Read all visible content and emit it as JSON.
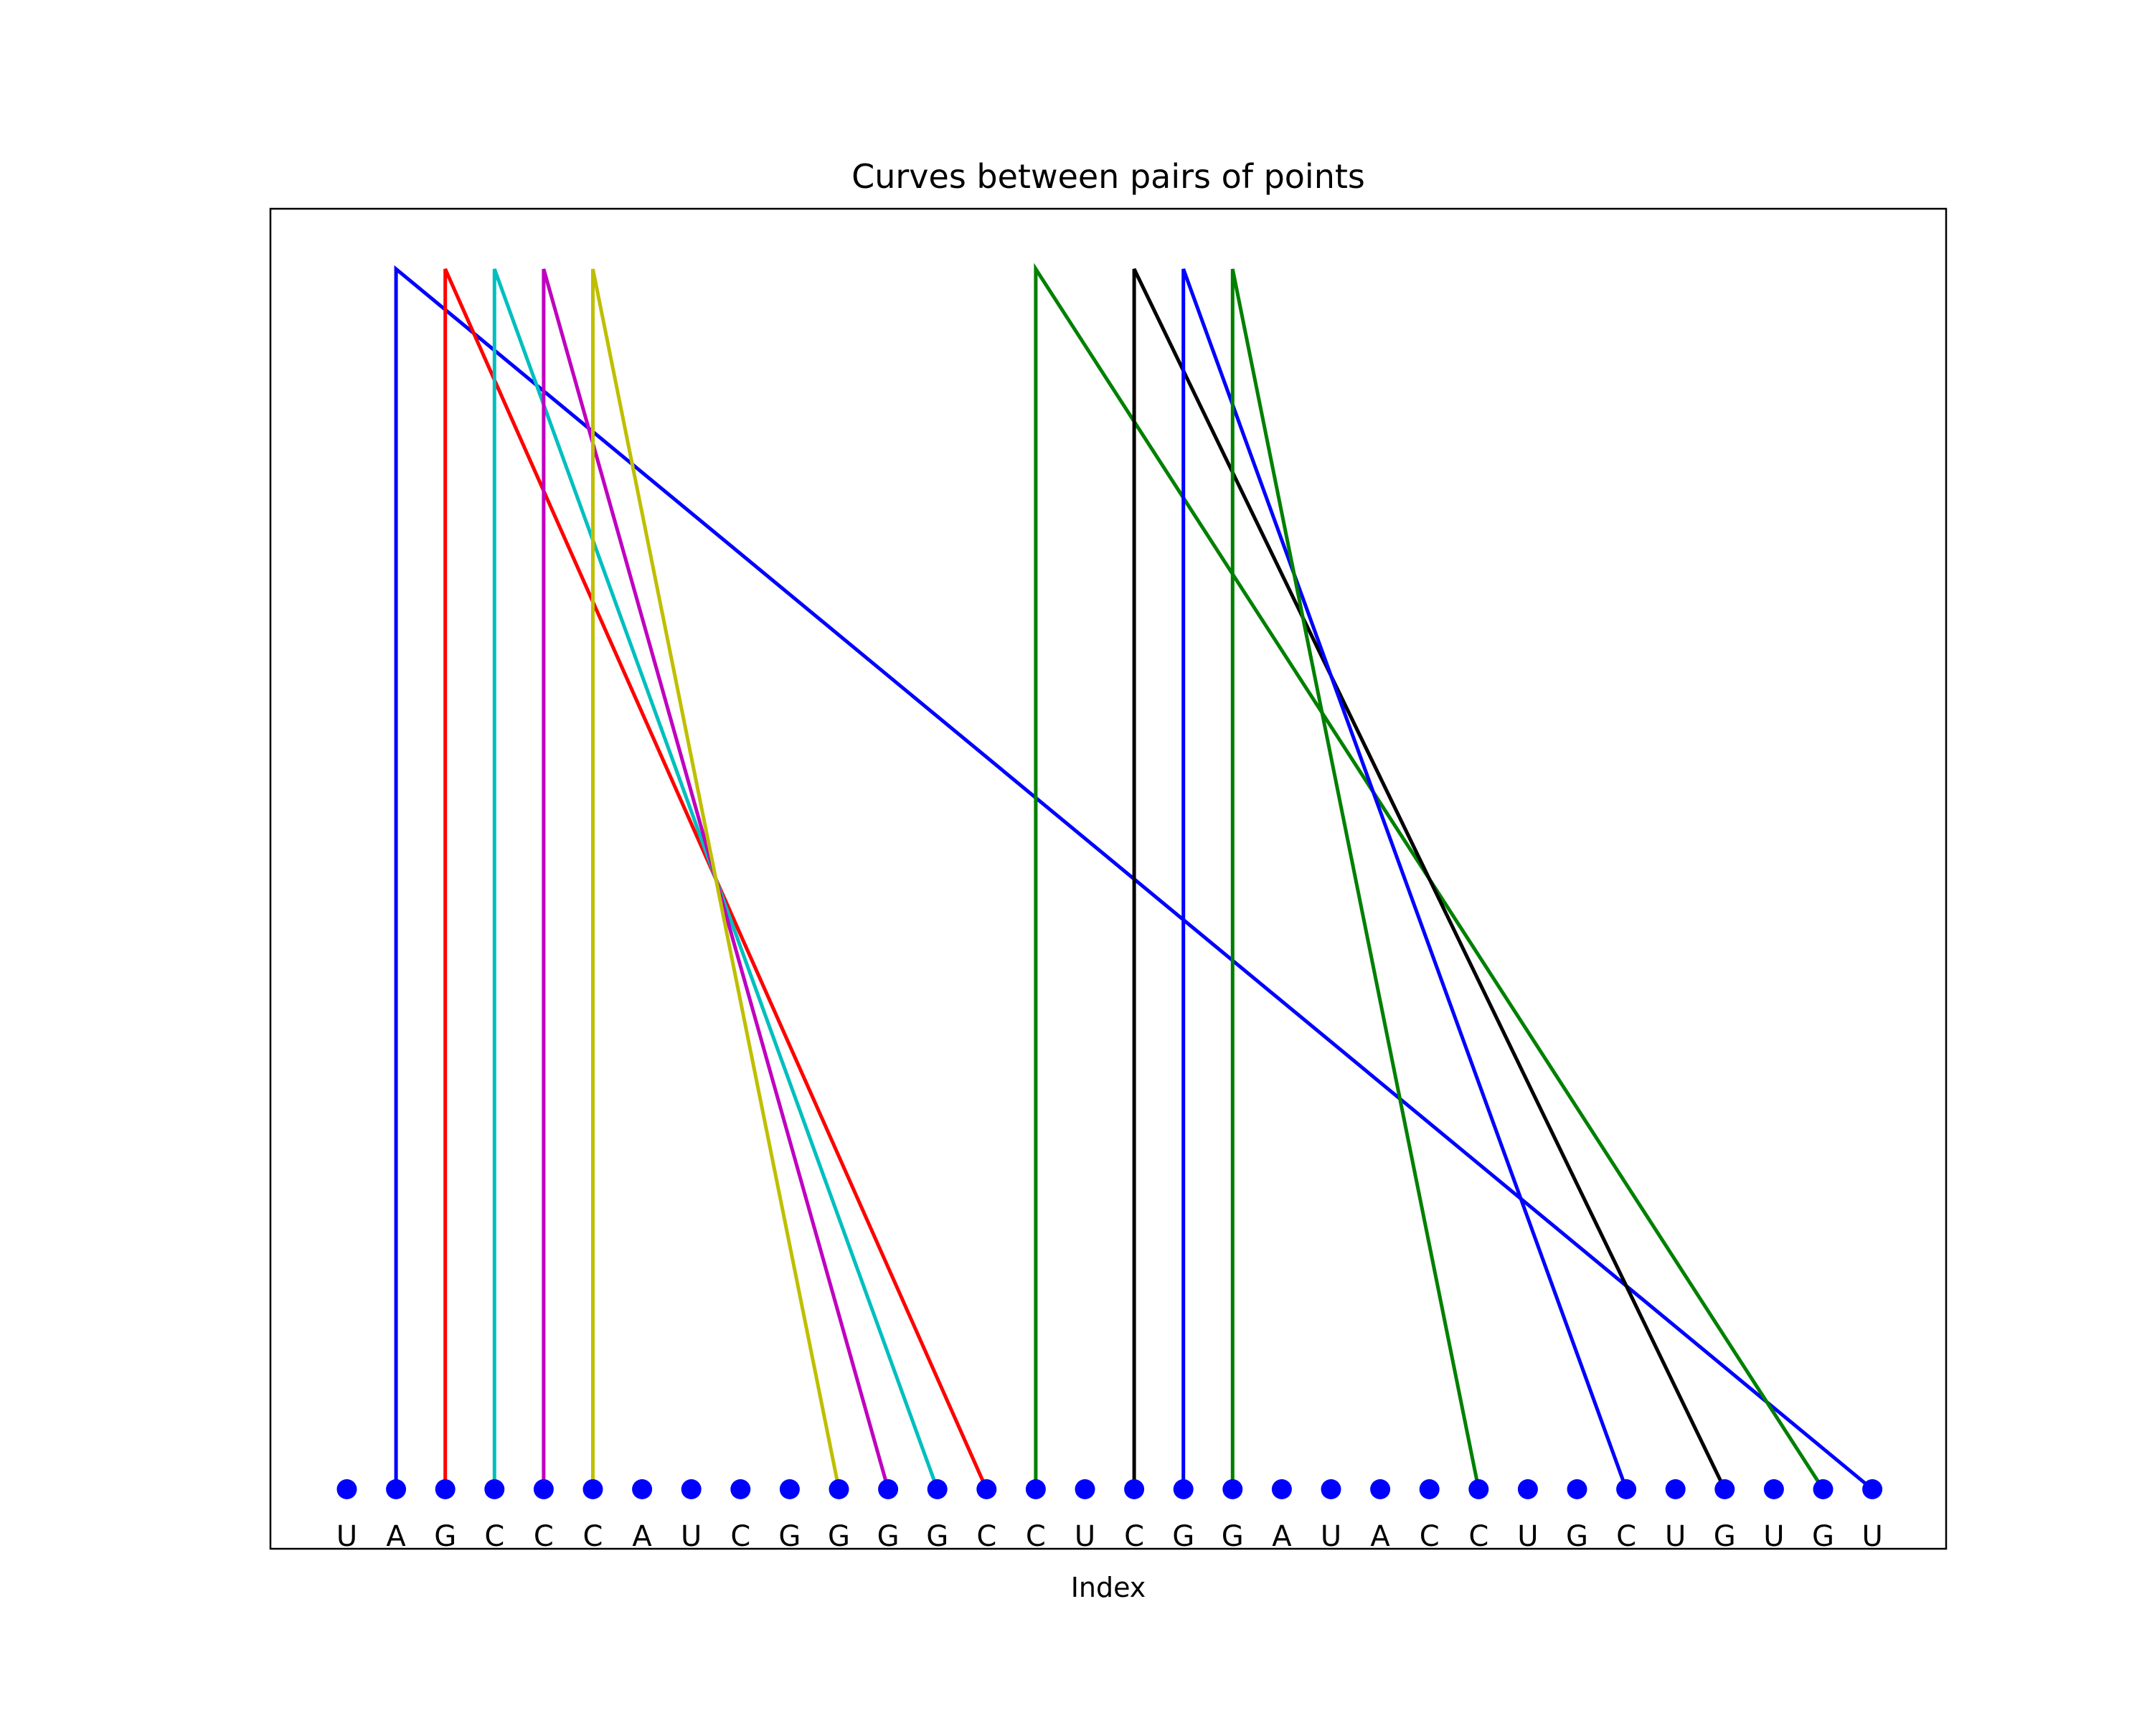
{
  "chart_data": {
    "type": "arc",
    "title": "Curves between pairs of points",
    "xlabel": "Index",
    "ylabel": "",
    "grid": false,
    "legend": "none",
    "point_color": "#0000ff",
    "sequence": [
      "U",
      "A",
      "G",
      "C",
      "C",
      "C",
      "A",
      "U",
      "C",
      "G",
      "G",
      "G",
      "G",
      "C",
      "C",
      "U",
      "C",
      "G",
      "G",
      "A",
      "U",
      "A",
      "C",
      "C",
      "U",
      "G",
      "C",
      "U",
      "G",
      "U",
      "G",
      "U"
    ],
    "x": [
      0,
      1,
      2,
      3,
      4,
      5,
      6,
      7,
      8,
      9,
      10,
      11,
      12,
      13,
      14,
      15,
      16,
      17,
      18,
      19,
      20,
      21,
      22,
      23,
      24,
      25,
      26,
      27,
      28,
      29,
      30,
      31
    ],
    "pairs": [
      {
        "from": 1,
        "to": 31,
        "color": "#0000ff"
      },
      {
        "from": 2,
        "to": 13,
        "color": "#ff0000"
      },
      {
        "from": 3,
        "to": 12,
        "color": "#00bfbf"
      },
      {
        "from": 4,
        "to": 11,
        "color": "#bf00bf"
      },
      {
        "from": 5,
        "to": 10,
        "color": "#bfbf00"
      },
      {
        "from": 14,
        "to": 30,
        "color": "#008000"
      },
      {
        "from": 16,
        "to": 28,
        "color": "#000000"
      },
      {
        "from": 17,
        "to": 26,
        "color": "#0000ff"
      },
      {
        "from": 18,
        "to": 23,
        "color": "#008000"
      }
    ]
  }
}
